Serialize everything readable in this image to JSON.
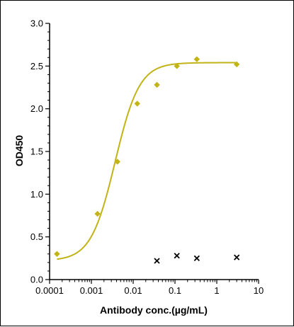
{
  "chart_data": {
    "type": "scatter",
    "title": "",
    "xlabel": "Antibody conc.(µg/mL)",
    "ylabel": "OD450",
    "xscale": "log",
    "xlim": [
      0.0001,
      10
    ],
    "ylim": [
      0,
      3.0
    ],
    "x_ticks": [
      {
        "value": 0.0001,
        "label": "0.0001"
      },
      {
        "value": 0.001,
        "label": "0.001"
      },
      {
        "value": 0.01,
        "label": "0.01"
      },
      {
        "value": 0.1,
        "label": "0.1"
      },
      {
        "value": 1,
        "label": "1"
      },
      {
        "value": 10,
        "label": "10"
      }
    ],
    "y_ticks": [
      {
        "value": 0.0,
        "label": "0.0"
      },
      {
        "value": 0.5,
        "label": "0.5"
      },
      {
        "value": 1.0,
        "label": "1.0"
      },
      {
        "value": 1.5,
        "label": "1.5"
      },
      {
        "value": 2.0,
        "label": "2.0"
      },
      {
        "value": 2.5,
        "label": "2.5"
      },
      {
        "value": 3.0,
        "label": "3.0"
      }
    ],
    "grid": false,
    "series": [
      {
        "marker": "diamond",
        "color": "#c2b317",
        "x": [
          0.00015,
          0.0014,
          0.0042,
          0.0125,
          0.037,
          0.111,
          0.333,
          3.0
        ],
        "y": [
          0.3,
          0.77,
          1.38,
          2.06,
          2.28,
          2.5,
          2.58,
          2.52
        ],
        "fit": {
          "model": "4PL",
          "bottom": 0.22,
          "top": 2.54,
          "ec50": 0.0037,
          "hill": 1.5
        }
      },
      {
        "marker": "x",
        "color": "#000000",
        "x": [
          0.037,
          0.111,
          0.333,
          3.0
        ],
        "y": [
          0.22,
          0.28,
          0.25,
          0.26
        ]
      }
    ]
  }
}
